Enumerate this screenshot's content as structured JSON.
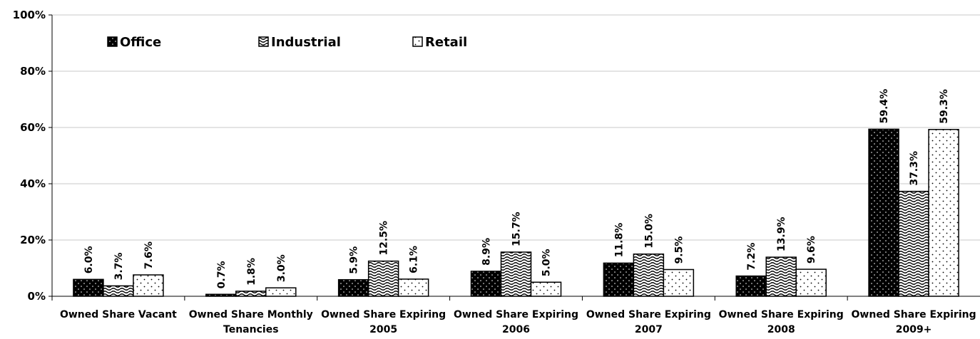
{
  "chart_data": {
    "type": "bar",
    "categories": [
      [
        "Owned Share Vacant"
      ],
      [
        "Owned Share Monthly",
        "Tenancies"
      ],
      [
        "Owned Share Expiring",
        "2005"
      ],
      [
        "Owned Share Expiring",
        "2006"
      ],
      [
        "Owned Share Expiring",
        "2007"
      ],
      [
        "Owned Share Expiring",
        "2008"
      ],
      [
        "Owned Share Expiring",
        "2009+"
      ]
    ],
    "series": [
      {
        "name": "Office",
        "pattern": "dots-dark",
        "values": [
          6.0,
          0.7,
          5.9,
          8.9,
          11.8,
          7.2,
          59.4
        ],
        "labels": [
          "6.0%",
          "0.7%",
          "5.9%",
          "8.9%",
          "11.8%",
          "7.2%",
          "59.4%"
        ]
      },
      {
        "name": "Industrial",
        "pattern": "waves",
        "values": [
          3.7,
          1.8,
          12.5,
          15.7,
          15.0,
          13.9,
          37.3
        ],
        "labels": [
          "3.7%",
          "1.8%",
          "12.5%",
          "15.7%",
          "15.0%",
          "13.9%",
          "37.3%"
        ]
      },
      {
        "name": "Retail",
        "pattern": "dots-light",
        "values": [
          7.6,
          3.0,
          6.1,
          5.0,
          9.5,
          9.6,
          59.3
        ],
        "labels": [
          "7.6%",
          "3.0%",
          "6.1%",
          "5.0%",
          "9.5%",
          "9.6%",
          "59.3%"
        ]
      }
    ],
    "yticks": [
      "0%",
      "20%",
      "40%",
      "60%",
      "80%",
      "100%"
    ],
    "ylim": [
      0,
      100
    ],
    "grid": true,
    "legend": "top-left, horizontal, inside plot",
    "colors": {
      "bar_fill_dark": "#000000",
      "bar_fill_light": "#ffffff",
      "bar_stroke": "#000000",
      "gridline": "#c8c8c8"
    }
  }
}
